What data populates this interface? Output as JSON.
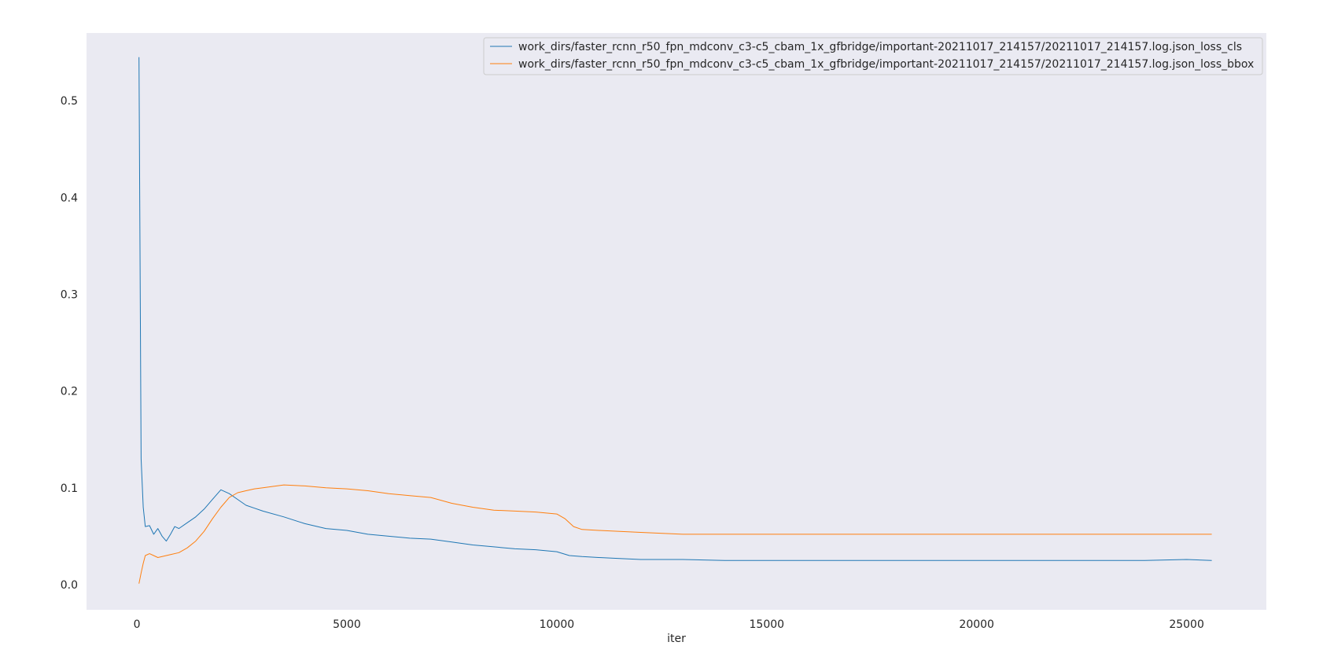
{
  "chart_data": {
    "type": "line",
    "title": "",
    "xlabel": "iter",
    "ylabel": "",
    "xlim": [
      -1200,
      26900
    ],
    "ylim": [
      -0.026,
      0.57
    ],
    "xticks": [
      0,
      5000,
      10000,
      15000,
      20000,
      25000
    ],
    "xtick_labels": [
      "0",
      "5000",
      "10000",
      "15000",
      "20000",
      "25000"
    ],
    "yticks": [
      0.0,
      0.1,
      0.2,
      0.3,
      0.4,
      0.5
    ],
    "ytick_labels": [
      "0.0",
      "0.1",
      "0.2",
      "0.3",
      "0.4",
      "0.5"
    ],
    "grid": false,
    "legend_position": "top-right",
    "background": "#eaeaf2",
    "series": [
      {
        "name": "work_dirs/faster_rcnn_r50_fpn_mdconv_c3-c5_cbam_1x_gfbridge/important-20211017_214157/20211017_214157.log.json_loss_cls",
        "color": "#1f77b4",
        "x": [
          50,
          100,
          150,
          200,
          300,
          400,
          500,
          600,
          700,
          800,
          900,
          1000,
          1200,
          1400,
          1600,
          1800,
          2000,
          2200,
          2400,
          2600,
          2800,
          3000,
          3500,
          4000,
          4500,
          5000,
          5500,
          6000,
          6500,
          7000,
          7500,
          8000,
          8500,
          9000,
          9500,
          10000,
          10300,
          10600,
          11000,
          11500,
          12000,
          13000,
          14000,
          15000,
          16000,
          17000,
          18000,
          19000,
          20000,
          21000,
          22000,
          23000,
          24000,
          25000,
          25600
        ],
        "values": [
          0.545,
          0.13,
          0.08,
          0.06,
          0.061,
          0.052,
          0.058,
          0.05,
          0.045,
          0.052,
          0.06,
          0.058,
          0.064,
          0.07,
          0.078,
          0.088,
          0.098,
          0.094,
          0.088,
          0.082,
          0.079,
          0.076,
          0.07,
          0.063,
          0.058,
          0.056,
          0.052,
          0.05,
          0.048,
          0.047,
          0.044,
          0.041,
          0.039,
          0.037,
          0.036,
          0.034,
          0.03,
          0.029,
          0.028,
          0.027,
          0.026,
          0.026,
          0.025,
          0.025,
          0.025,
          0.025,
          0.025,
          0.025,
          0.025,
          0.025,
          0.025,
          0.025,
          0.025,
          0.026,
          0.025
        ]
      },
      {
        "name": "work_dirs/faster_rcnn_r50_fpn_mdconv_c3-c5_cbam_1x_gfbridge/important-20211017_214157/20211017_214157.log.json_loss_bbox",
        "color": "#ff7f0e",
        "x": [
          50,
          100,
          150,
          200,
          300,
          400,
          500,
          600,
          700,
          800,
          1000,
          1200,
          1400,
          1600,
          1800,
          2000,
          2200,
          2400,
          2600,
          2800,
          3000,
          3500,
          4000,
          4500,
          5000,
          5500,
          6000,
          6500,
          7000,
          7500,
          8000,
          8500,
          9000,
          9500,
          10000,
          10200,
          10400,
          10600,
          11000,
          11500,
          12000,
          13000,
          14000,
          15000,
          16000,
          17000,
          18000,
          19000,
          20000,
          21000,
          22000,
          23000,
          24000,
          25000,
          25600
        ],
        "values": [
          0.001,
          0.012,
          0.022,
          0.03,
          0.032,
          0.03,
          0.028,
          0.029,
          0.03,
          0.031,
          0.033,
          0.038,
          0.045,
          0.055,
          0.068,
          0.08,
          0.09,
          0.095,
          0.097,
          0.099,
          0.1,
          0.103,
          0.102,
          0.1,
          0.099,
          0.097,
          0.094,
          0.092,
          0.09,
          0.084,
          0.08,
          0.077,
          0.076,
          0.075,
          0.073,
          0.068,
          0.06,
          0.057,
          0.056,
          0.055,
          0.054,
          0.052,
          0.052,
          0.052,
          0.052,
          0.052,
          0.052,
          0.052,
          0.052,
          0.052,
          0.052,
          0.052,
          0.052,
          0.052,
          0.052
        ]
      }
    ]
  }
}
